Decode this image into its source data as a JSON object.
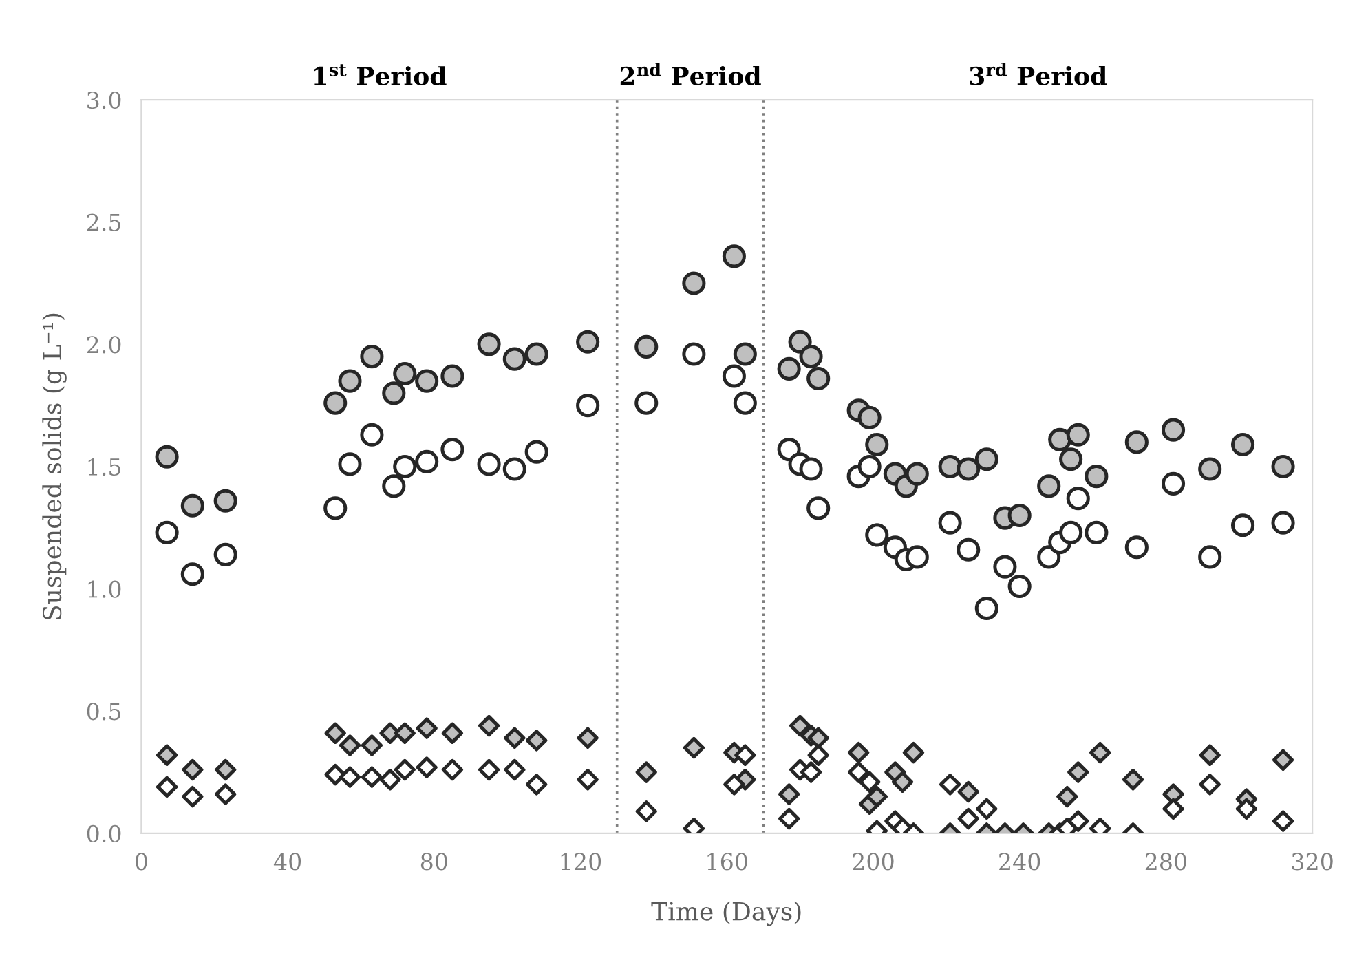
{
  "chart_data": {
    "type": "scatter",
    "xlabel": "Time (Days)",
    "ylabel": "Suspended solids (g L⁻¹)",
    "xlim": [
      0,
      320
    ],
    "xticks": [
      0,
      40,
      80,
      120,
      160,
      200,
      240,
      280,
      320
    ],
    "ylim": [
      0,
      3.0
    ],
    "yticks": [
      {
        "value": 0,
        "label": "0.0"
      },
      0.5,
      {
        "value": 1,
        "label": "1.0"
      },
      1.5,
      {
        "value": 2,
        "label": "2.0"
      },
      2.5,
      {
        "value": 3,
        "label": "3.0"
      }
    ],
    "grid": false,
    "legend": false,
    "ref_lines": [
      {
        "axis": "x",
        "value": 130,
        "line_style": "dotted",
        "color": "#808080"
      },
      {
        "axis": "x",
        "value": 170,
        "line_style": "dotted",
        "color": "#808080"
      }
    ],
    "annotations": [
      "1$^{st}$ Period",
      "2$^{nd}$ Period",
      "3$^{rd}$ Period"
    ],
    "series": [
      {
        "color": "#bfbfbf",
        "marker": "circle",
        "x": [
          7,
          14,
          23,
          53,
          57,
          63,
          69,
          72,
          78,
          85,
          95,
          102,
          108,
          122,
          138,
          151,
          162,
          165,
          177,
          180,
          183,
          185,
          196,
          199,
          201,
          206,
          209,
          212,
          221,
          226,
          231,
          236,
          240,
          248,
          251,
          254,
          256,
          261,
          272,
          282,
          292,
          301,
          312
        ],
        "values": [
          1.54,
          1.34,
          1.36,
          1.76,
          1.85,
          1.95,
          1.8,
          1.88,
          1.85,
          1.87,
          2.0,
          1.94,
          1.96,
          2.01,
          1.99,
          2.25,
          2.36,
          1.96,
          1.9,
          2.01,
          1.95,
          1.86,
          1.73,
          1.7,
          1.59,
          1.47,
          1.42,
          1.47,
          1.5,
          1.49,
          1.53,
          1.29,
          1.3,
          1.42,
          1.61,
          1.53,
          1.63,
          1.46,
          1.6,
          1.65,
          1.49,
          1.59,
          1.5
        ]
      },
      {
        "color": "#ffffff",
        "marker": "circle",
        "x": [
          7,
          14,
          23,
          53,
          57,
          63,
          69,
          72,
          78,
          85,
          95,
          102,
          108,
          122,
          138,
          151,
          162,
          165,
          177,
          180,
          183,
          185,
          196,
          199,
          201,
          206,
          209,
          212,
          221,
          226,
          231,
          236,
          240,
          248,
          251,
          254,
          256,
          261,
          272,
          282,
          292,
          301,
          312
        ],
        "values": [
          1.23,
          1.06,
          1.14,
          1.33,
          1.51,
          1.63,
          1.42,
          1.5,
          1.52,
          1.57,
          1.51,
          1.49,
          1.56,
          1.75,
          1.76,
          1.96,
          1.87,
          1.76,
          1.57,
          1.51,
          1.49,
          1.33,
          1.46,
          1.5,
          1.22,
          1.17,
          1.12,
          1.13,
          1.27,
          1.16,
          0.92,
          1.09,
          1.01,
          1.13,
          1.19,
          1.23,
          1.37,
          1.23,
          1.17,
          1.43,
          1.13,
          1.26,
          1.27
        ]
      },
      {
        "color": "#bfbfbf",
        "marker": "diamond",
        "x": [
          7,
          14,
          23,
          53,
          57,
          63,
          68,
          72,
          78,
          85,
          95,
          102,
          108,
          122,
          138,
          151,
          162,
          165,
          177,
          180,
          183,
          185,
          196,
          199,
          201,
          206,
          208,
          211,
          221,
          226,
          231,
          236,
          241,
          248,
          253,
          256,
          262,
          271,
          282,
          292,
          302,
          312
        ],
        "values": [
          0.32,
          0.26,
          0.26,
          0.41,
          0.36,
          0.36,
          0.41,
          0.41,
          0.43,
          0.41,
          0.44,
          0.39,
          0.38,
          0.39,
          0.25,
          0.35,
          0.33,
          0.22,
          0.16,
          0.44,
          0.4,
          0.39,
          0.33,
          0.12,
          0.15,
          0.25,
          0.21,
          0.33,
          0.0,
          0.17,
          0.0,
          0.0,
          0.0,
          0.0,
          0.15,
          0.25,
          0.33,
          0.22,
          0.16,
          0.32,
          0.14,
          0.3
        ]
      },
      {
        "color": "#ffffff",
        "marker": "diamond",
        "x": [
          7,
          14,
          23,
          53,
          57,
          63,
          68,
          72,
          78,
          85,
          95,
          102,
          108,
          122,
          138,
          151,
          162,
          165,
          177,
          180,
          183,
          185,
          196,
          199,
          201,
          206,
          208,
          211,
          221,
          226,
          231,
          251,
          253,
          256,
          262,
          271,
          282,
          292,
          302,
          312
        ],
        "values": [
          0.19,
          0.15,
          0.16,
          0.24,
          0.23,
          0.23,
          0.22,
          0.26,
          0.27,
          0.26,
          0.26,
          0.26,
          0.2,
          0.22,
          0.09,
          0.02,
          0.2,
          0.32,
          0.06,
          0.26,
          0.25,
          0.32,
          0.25,
          0.21,
          0.01,
          0.05,
          0.02,
          0.0,
          0.2,
          0.06,
          0.1,
          0.0,
          0.02,
          0.05,
          0.02,
          0.0,
          0.1,
          0.2,
          0.1,
          0.05
        ]
      }
    ]
  }
}
